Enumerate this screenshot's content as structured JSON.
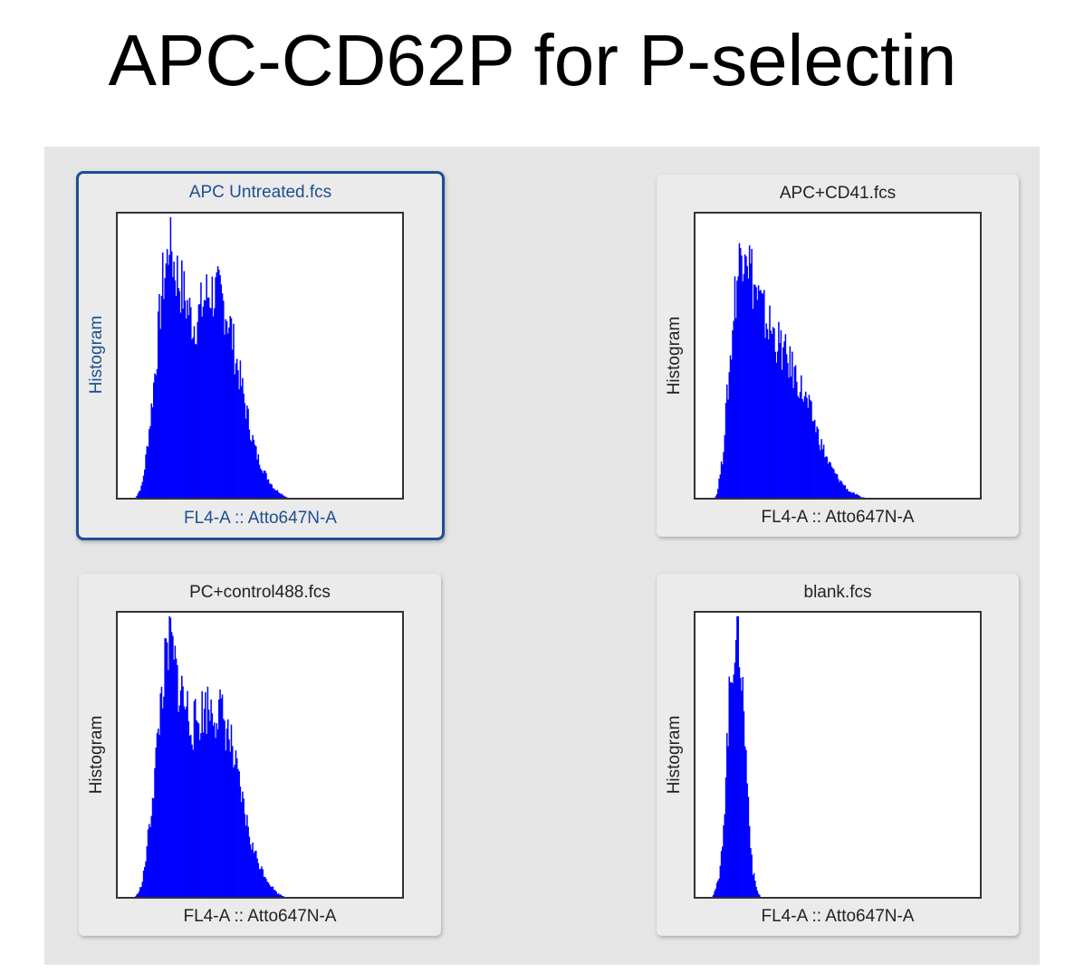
{
  "title": "APC-CD62P for P-selectin",
  "colors": {
    "histogram": "#0000ff",
    "selected_border": "#1d4f91"
  },
  "chart_data": [
    {
      "type": "bar",
      "title": "APC Untreated.fcs",
      "xlabel": "FL4-A :: Atto647N-A",
      "ylabel": "Histogram",
      "selected": true,
      "envelope": [
        [
          6,
          0
        ],
        [
          7,
          1
        ],
        [
          9,
          5
        ],
        [
          10,
          12
        ],
        [
          12,
          30
        ],
        [
          14,
          52
        ],
        [
          15,
          65
        ],
        [
          16,
          78
        ],
        [
          18,
          88
        ],
        [
          18.5,
          100
        ],
        [
          20,
          86
        ],
        [
          22,
          80
        ],
        [
          25,
          70
        ],
        [
          27,
          64
        ],
        [
          29,
          68
        ],
        [
          31,
          74
        ],
        [
          33,
          76
        ],
        [
          36,
          74
        ],
        [
          38,
          70
        ],
        [
          40,
          62
        ],
        [
          41,
          55
        ],
        [
          43,
          45
        ],
        [
          45,
          34
        ],
        [
          47,
          24
        ],
        [
          49,
          16
        ],
        [
          52,
          9
        ],
        [
          55,
          4
        ],
        [
          59,
          1
        ],
        [
          61,
          0
        ]
      ]
    },
    {
      "type": "bar",
      "title": "APC+CD41.fcs",
      "xlabel": "FL4-A :: Atto647N-A",
      "ylabel": "Histogram",
      "selected": false,
      "envelope": [
        [
          7,
          0
        ],
        [
          8,
          2
        ],
        [
          10,
          15
        ],
        [
          11,
          30
        ],
        [
          13,
          55
        ],
        [
          14,
          72
        ],
        [
          16,
          88
        ],
        [
          18,
          100
        ],
        [
          19,
          88
        ],
        [
          21,
          78
        ],
        [
          24,
          68
        ],
        [
          27,
          62
        ],
        [
          30,
          56
        ],
        [
          33,
          50
        ],
        [
          36,
          44
        ],
        [
          39,
          36
        ],
        [
          42,
          28
        ],
        [
          44,
          21
        ],
        [
          47,
          13
        ],
        [
          50,
          8
        ],
        [
          54,
          3
        ],
        [
          58,
          1
        ],
        [
          62,
          0
        ]
      ]
    },
    {
      "type": "bar",
      "title": "PC+control488.fcs",
      "xlabel": "FL4-A :: Atto647N-A",
      "ylabel": "Histogram",
      "selected": false,
      "envelope": [
        [
          6,
          0
        ],
        [
          7,
          1
        ],
        [
          9,
          5
        ],
        [
          10,
          12
        ],
        [
          12,
          30
        ],
        [
          14,
          52
        ],
        [
          15,
          65
        ],
        [
          16,
          78
        ],
        [
          18,
          88
        ],
        [
          18.5,
          100
        ],
        [
          20,
          86
        ],
        [
          22,
          78
        ],
        [
          25,
          68
        ],
        [
          27,
          63
        ],
        [
          29,
          66
        ],
        [
          31,
          70
        ],
        [
          33,
          70
        ],
        [
          36,
          68
        ],
        [
          38,
          64
        ],
        [
          40,
          56
        ],
        [
          41,
          50
        ],
        [
          43,
          40
        ],
        [
          45,
          30
        ],
        [
          47,
          20
        ],
        [
          50,
          12
        ],
        [
          53,
          6
        ],
        [
          56,
          2
        ],
        [
          60,
          0
        ]
      ]
    },
    {
      "type": "bar",
      "title": "blank.fcs",
      "xlabel": "FL4-A :: Atto647N-A",
      "ylabel": "Histogram",
      "selected": false,
      "envelope": [
        [
          6,
          0
        ],
        [
          7,
          2
        ],
        [
          9,
          8
        ],
        [
          10.5,
          30
        ],
        [
          11.5,
          55
        ],
        [
          12.5,
          75
        ],
        [
          14,
          95
        ],
        [
          15.5,
          100
        ],
        [
          16.5,
          85
        ],
        [
          17.5,
          65
        ],
        [
          18.5,
          45
        ],
        [
          19.5,
          25
        ],
        [
          20.5,
          10
        ],
        [
          22,
          3
        ],
        [
          23.5,
          0
        ]
      ]
    }
  ]
}
